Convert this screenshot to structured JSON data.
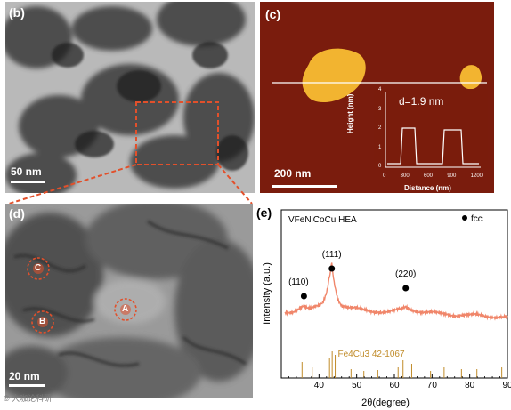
{
  "panels": {
    "b": {
      "tag": "(b)",
      "scale": "50 nm"
    },
    "c": {
      "tag": "(c)",
      "scale": "200 nm",
      "inset": {
        "annotation": "d=1.9 nm",
        "ylabel": "Height (nm)",
        "xlabel": "Distance (nm)",
        "xticks": [
          "0",
          "300",
          "600",
          "900",
          "1200"
        ],
        "yticks": [
          "0",
          "1",
          "2",
          "3",
          "4"
        ]
      }
    },
    "d": {
      "tag": "(d)",
      "scale": "20 nm",
      "markers": [
        "A",
        "B",
        "C"
      ]
    },
    "e": {
      "tag": "(e)"
    }
  },
  "watermark": "© 大咖论科研",
  "chart_data": {
    "type": "line",
    "title": "VFeNiCoCu HEA",
    "xlabel": "2θ(degree)",
    "ylabel": "Intensity (a.u.)",
    "xlim": [
      30,
      90
    ],
    "xticks": [
      40,
      50,
      60,
      70,
      80,
      90
    ],
    "legend": "fcc",
    "peaks": [
      {
        "label": "(110)",
        "x": 36
      },
      {
        "label": "(111)",
        "x": 43.4
      },
      {
        "label": "(220)",
        "x": 63
      }
    ],
    "series": [
      {
        "name": "VFeNiCoCu HEA",
        "x": [
          31,
          33,
          35,
          36,
          37,
          38,
          39,
          40,
          41,
          42,
          42.8,
          43.4,
          44,
          45,
          46,
          47,
          48,
          50,
          52,
          54,
          56,
          58,
          60,
          62,
          63,
          64,
          66,
          68,
          70,
          72,
          74,
          76,
          78,
          80,
          82,
          84,
          86,
          88,
          90
        ],
        "y": [
          0.3,
          0.32,
          0.38,
          0.4,
          0.36,
          0.35,
          0.37,
          0.38,
          0.42,
          0.55,
          0.78,
          0.9,
          0.7,
          0.48,
          0.4,
          0.38,
          0.36,
          0.35,
          0.34,
          0.33,
          0.32,
          0.31,
          0.32,
          0.35,
          0.38,
          0.36,
          0.33,
          0.31,
          0.3,
          0.29,
          0.29,
          0.28,
          0.28,
          0.27,
          0.27,
          0.26,
          0.26,
          0.26,
          0.25
        ]
      }
    ],
    "reference": {
      "name": "Fe4Cu3 42-1067",
      "x": [
        35.5,
        38.2,
        42.8,
        43.5,
        44.3,
        48.5,
        51.9,
        55.6,
        61.0,
        62.3,
        64.6,
        69.6,
        73.2,
        77.8,
        81.9,
        88.5
      ]
    }
  },
  "colors": {
    "accent_red": "#e2502b",
    "xrd_line": "#f0866a",
    "afm_bg": "#7a1c0d",
    "ref_line": "#c18c2a"
  }
}
